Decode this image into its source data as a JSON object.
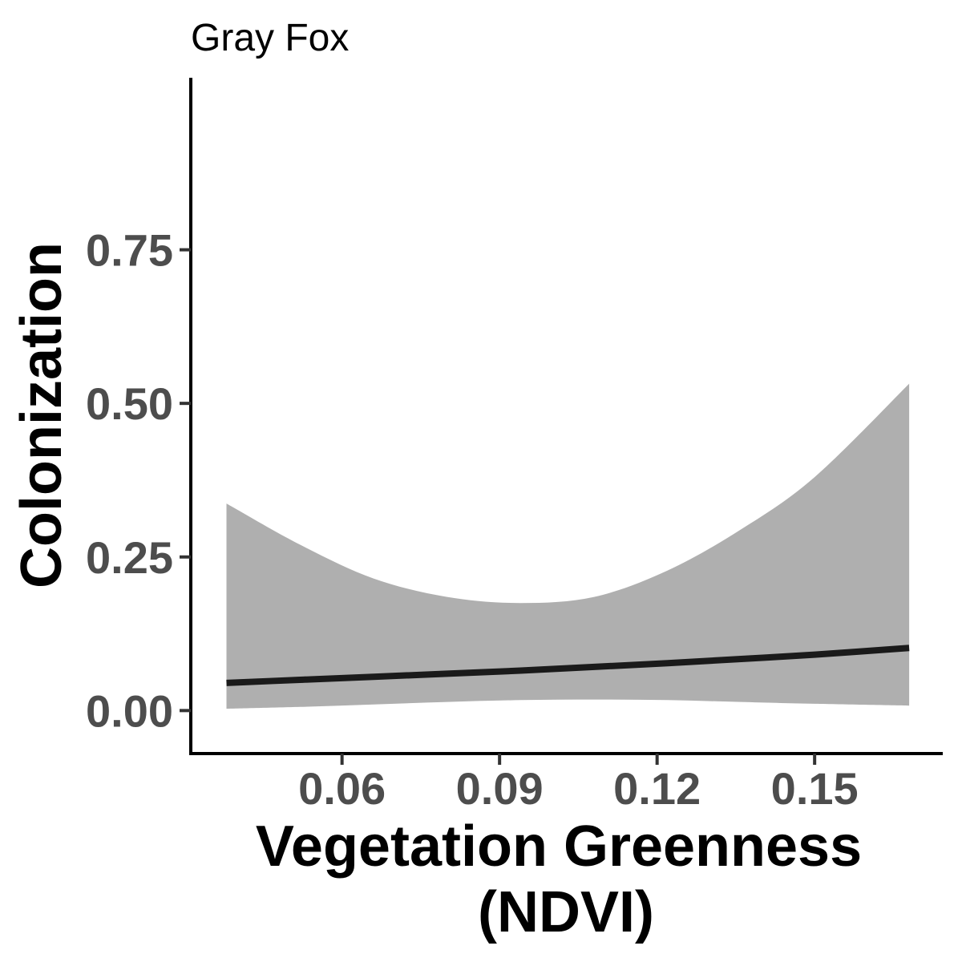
{
  "chart_data": {
    "type": "line",
    "title": "Gray Fox",
    "xlabel_lines": [
      "Vegetation Greenness",
      "(NDVI)"
    ],
    "ylabel": "Colonization",
    "xlim": [
      0.0312,
      0.1744
    ],
    "ylim": [
      -0.07,
      1.03
    ],
    "x_ticks": [
      0.06,
      0.09,
      0.12,
      0.15
    ],
    "x_tick_labels": [
      "0.06",
      "0.09",
      "0.12",
      "0.15"
    ],
    "y_ticks": [
      0.0,
      0.25,
      0.5,
      0.75
    ],
    "y_tick_labels": [
      "0.00",
      "0.25",
      "0.50",
      "0.75"
    ],
    "grid": false,
    "series": [
      {
        "name": "Colonization",
        "x": [
          0.038,
          0.052,
          0.066,
          0.08,
          0.094,
          0.108,
          0.122,
          0.136,
          0.15,
          0.168
        ],
        "y": [
          0.045,
          0.05,
          0.055,
          0.06,
          0.065,
          0.071,
          0.077,
          0.084,
          0.091,
          0.102
        ],
        "ci_lower": [
          0.003,
          0.006,
          0.01,
          0.014,
          0.017,
          0.018,
          0.017,
          0.014,
          0.011,
          0.008
        ],
        "ci_upper": [
          0.337,
          0.27,
          0.215,
          0.185,
          0.175,
          0.185,
          0.228,
          0.295,
          0.38,
          0.532
        ],
        "line_color": "#1a1a1a",
        "band_color": "#afafaf"
      }
    ]
  }
}
